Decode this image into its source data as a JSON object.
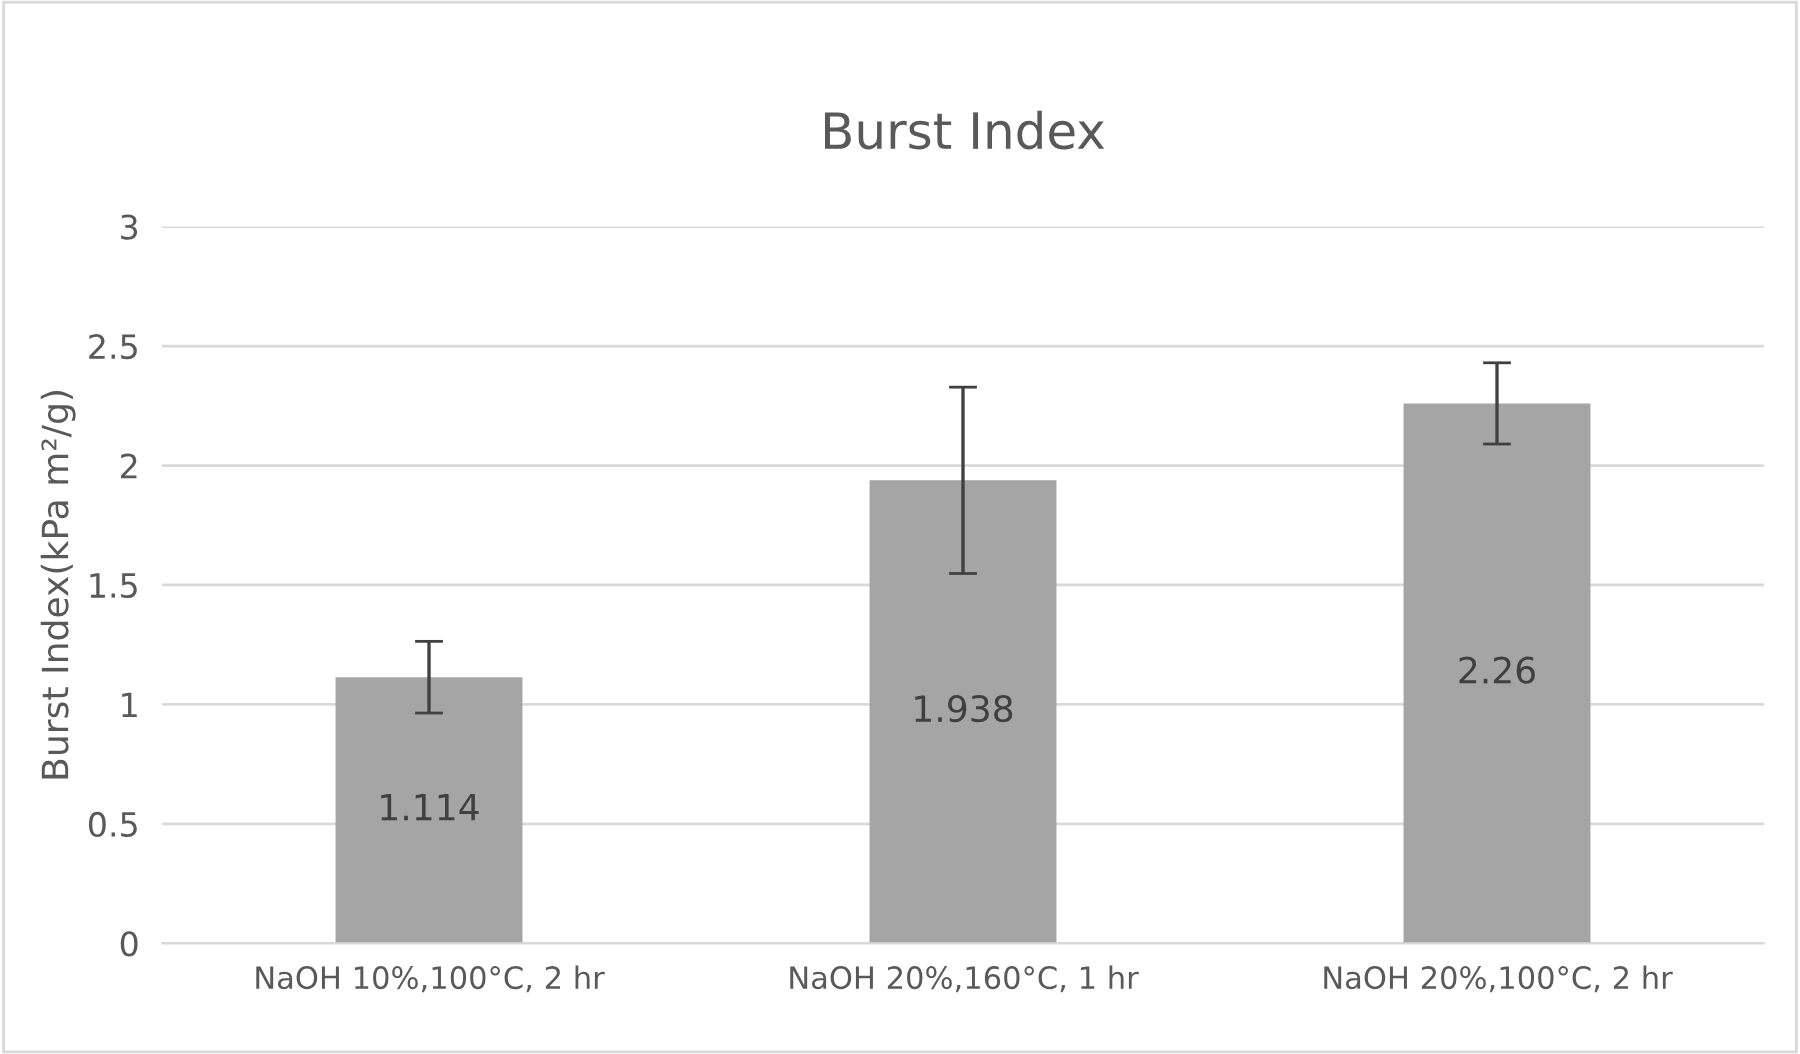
{
  "chart_data": {
    "type": "bar",
    "title": "Burst Index",
    "ylabel": "Burst Index(kPa m²/g)",
    "categories": [
      "NaOH 10%,100°C, 2 hr",
      "NaOH 20%,160°C, 1 hr",
      "NaOH 20%,100°C, 2 hr"
    ],
    "values": [
      1.114,
      1.938,
      2.26
    ],
    "errors": [
      0.15,
      0.39,
      0.17
    ],
    "color": "#a5a5a5",
    "ylim": [
      0,
      3
    ],
    "yticks": [
      0,
      0.5,
      1,
      1.5,
      2,
      2.5,
      3
    ],
    "grid": "y",
    "data_labels": true
  }
}
